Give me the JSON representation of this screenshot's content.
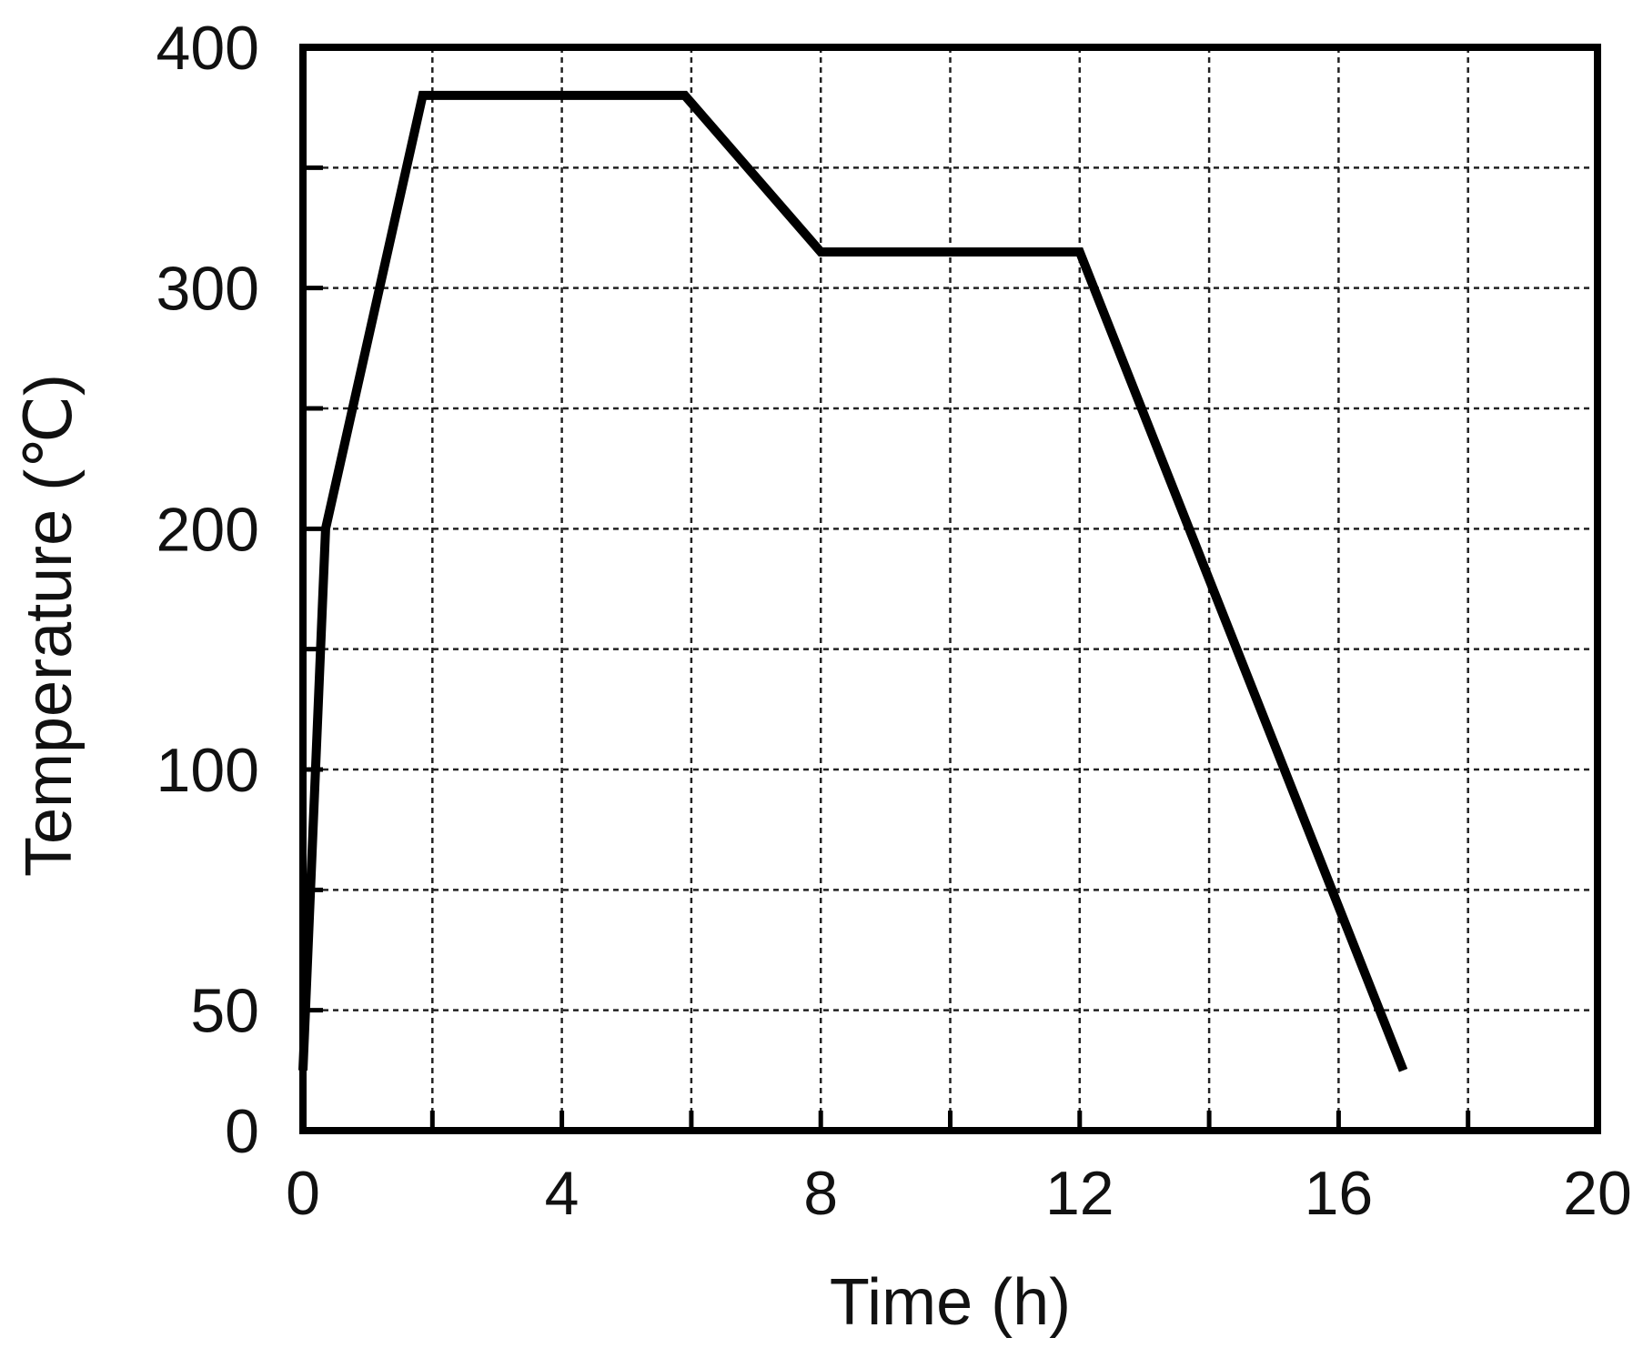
{
  "chart_data": {
    "type": "line",
    "title": "",
    "xlabel": "Time (h)",
    "ylabel": "Temperature (℃)",
    "xlim": [
      0,
      20
    ],
    "x_ticks": [
      0,
      4,
      8,
      12,
      16,
      20
    ],
    "x_tick_labels": [
      "0",
      "4",
      "8",
      "12",
      "16",
      "20"
    ],
    "y_tick_labels": [
      "0",
      "50",
      "100",
      "200",
      "300",
      "400"
    ],
    "y_axis_note": "non-uniform y axis: ten equal gridline steps labelled 0, 50, 100, 200, 300, 400 at steps 0, 1, 3, 5, 7, 9 of 9 (400 at top)",
    "grid": true,
    "series": [
      {
        "x": [
          0,
          0.35,
          1.85,
          5.9,
          8,
          12,
          17
        ],
        "y": [
          25,
          200,
          380,
          380,
          315,
          315,
          25
        ]
      }
    ],
    "colors": {
      "line": "#000000",
      "grid": "#222222",
      "frame": "#000000"
    }
  }
}
